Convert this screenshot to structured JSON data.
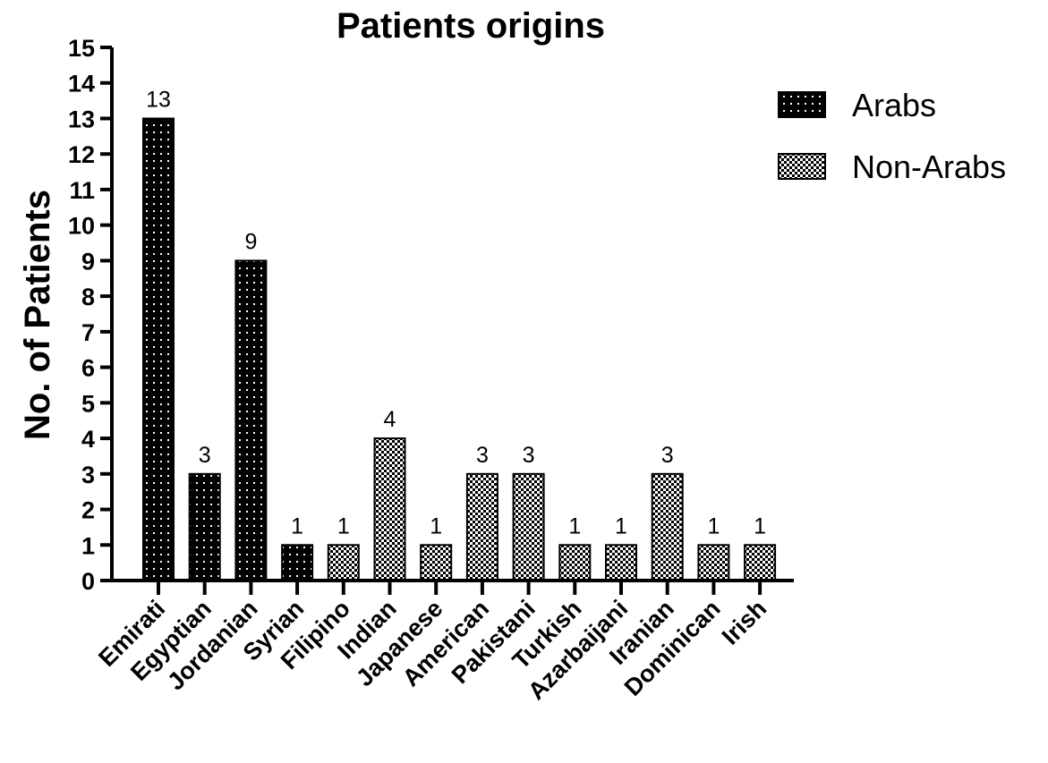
{
  "chart_data": {
    "type": "bar",
    "title": "Patients origins",
    "xlabel": "",
    "ylabel": "No. of Patients",
    "ylim": [
      0,
      15
    ],
    "yticks": [
      "0",
      "1",
      "2",
      "3",
      "4",
      "5",
      "6",
      "7",
      "8",
      "9",
      "10",
      "11",
      "12",
      "13",
      "14",
      "15"
    ],
    "grid": false,
    "legend_position": "top-right",
    "categories": [
      "Emirati",
      "Egyptian",
      "Jordanian",
      "Syrian",
      "Filipino",
      "Indian",
      "Japanese",
      "American",
      "Pakistani",
      "Turkish",
      "Azarbaijani",
      "Iranian",
      "Dominican",
      "Irish"
    ],
    "values": [
      13,
      3,
      9,
      1,
      1,
      4,
      1,
      3,
      3,
      1,
      1,
      3,
      1,
      1
    ],
    "data_labels": [
      "13",
      "3",
      "9",
      "1",
      "1",
      "4",
      "1",
      "3",
      "3",
      "1",
      "1",
      "3",
      "1",
      "1"
    ],
    "groups": [
      "Arabs",
      "Arabs",
      "Arabs",
      "Arabs",
      "Non-Arabs",
      "Non-Arabs",
      "Non-Arabs",
      "Non-Arabs",
      "Non-Arabs",
      "Non-Arabs",
      "Non-Arabs",
      "Non-Arabs",
      "Non-Arabs",
      "Non-Arabs"
    ],
    "legend": [
      {
        "name": "Arabs",
        "pattern": "dots-on-black"
      },
      {
        "name": "Non-Arabs",
        "pattern": "checkerboard"
      }
    ],
    "colors": {
      "bar_fill": "#000000",
      "pattern_light": "#ffffff",
      "axis": "#000000"
    }
  }
}
